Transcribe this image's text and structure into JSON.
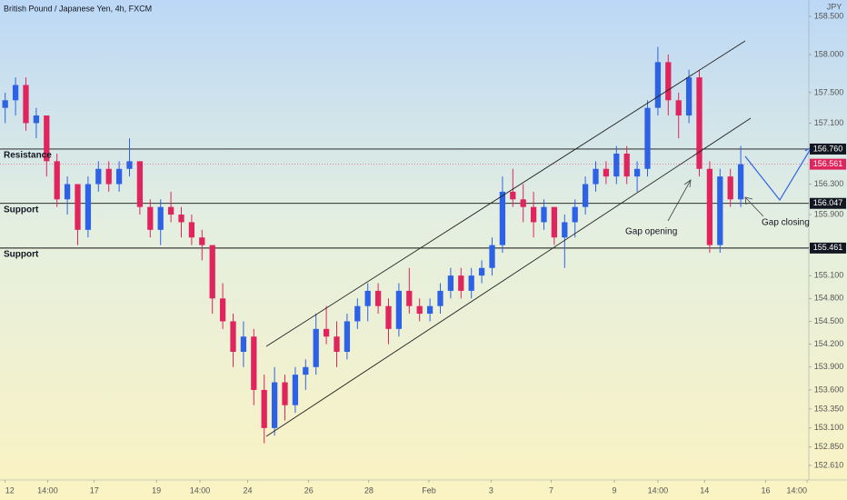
{
  "chart_data": {
    "type": "candlestick",
    "title": "British Pound / Japanese Yen, 4h, FXCM",
    "currency": "JPY",
    "up_color": "#2e62e6",
    "down_color": "#e0245e",
    "open": [
      157.3,
      157.4,
      157.6,
      157.1,
      157.2,
      156.6,
      156.1,
      156.3,
      155.7,
      156.3,
      156.5,
      156.3,
      156.5,
      156.6,
      156.0,
      155.7,
      156.0,
      155.9,
      155.8,
      155.6,
      155.5,
      154.8,
      154.5,
      154.1,
      154.3,
      153.6,
      153.1,
      153.7,
      153.4,
      153.8,
      153.9,
      154.4,
      154.3,
      154.1,
      154.5,
      154.7,
      154.9,
      154.7,
      154.4,
      154.9,
      154.7,
      154.6,
      154.7,
      154.9,
      155.1,
      154.9,
      155.1,
      155.2,
      155.5,
      156.2,
      156.1,
      156.0,
      155.8,
      156.0,
      155.6,
      155.8,
      156.0,
      156.3,
      156.5,
      156.4,
      156.7,
      156.4,
      156.5,
      157.3,
      157.9,
      157.4,
      157.2,
      157.7,
      156.5,
      155.5,
      156.4,
      156.1
    ],
    "high": [
      157.5,
      157.7,
      157.7,
      157.3,
      157.2,
      156.7,
      156.4,
      156.3,
      156.4,
      156.6,
      156.6,
      156.6,
      156.9,
      156.6,
      156.1,
      156.1,
      156.2,
      156.0,
      155.9,
      155.7,
      155.5,
      155.0,
      154.6,
      154.5,
      154.4,
      153.8,
      153.9,
      153.8,
      153.9,
      154.0,
      154.6,
      154.7,
      154.5,
      154.6,
      154.8,
      155.0,
      155.0,
      154.8,
      155.0,
      155.2,
      154.8,
      154.8,
      155.0,
      155.2,
      155.2,
      155.2,
      155.3,
      155.6,
      156.4,
      156.5,
      156.3,
      156.2,
      156.1,
      156.0,
      155.9,
      156.1,
      156.4,
      156.6,
      156.6,
      156.8,
      156.8,
      156.6,
      157.4,
      158.1,
      158.0,
      157.5,
      157.8,
      157.8,
      156.6,
      156.5,
      156.5,
      156.8
    ],
    "low": [
      157.1,
      157.2,
      157.0,
      156.9,
      156.4,
      156.0,
      155.9,
      155.5,
      155.6,
      156.2,
      156.2,
      156.2,
      156.4,
      155.9,
      155.6,
      155.5,
      155.8,
      155.6,
      155.5,
      155.3,
      154.6,
      154.4,
      153.9,
      153.9,
      153.4,
      152.9,
      153.0,
      153.2,
      153.3,
      153.6,
      153.8,
      154.2,
      153.9,
      154.0,
      154.4,
      154.5,
      154.6,
      154.2,
      154.3,
      154.6,
      154.5,
      154.5,
      154.6,
      154.8,
      154.8,
      154.8,
      155.0,
      155.1,
      155.4,
      156.0,
      155.8,
      155.6,
      155.7,
      155.5,
      155.2,
      155.6,
      155.9,
      156.2,
      156.3,
      156.3,
      156.3,
      156.2,
      156.4,
      157.2,
      157.2,
      156.9,
      157.1,
      156.4,
      155.4,
      155.4,
      156.0,
      156.0
    ],
    "close": [
      157.4,
      157.6,
      157.1,
      157.2,
      156.6,
      156.1,
      156.3,
      155.7,
      156.3,
      156.5,
      156.3,
      156.5,
      156.6,
      156.0,
      155.7,
      156.0,
      155.9,
      155.8,
      155.6,
      155.5,
      154.8,
      154.5,
      154.1,
      154.3,
      153.6,
      153.1,
      153.7,
      153.4,
      153.8,
      153.9,
      154.4,
      154.3,
      154.1,
      154.5,
      154.7,
      154.9,
      154.7,
      154.4,
      154.9,
      154.7,
      154.6,
      154.7,
      154.9,
      155.1,
      154.9,
      155.1,
      155.2,
      155.5,
      156.2,
      156.1,
      156.0,
      155.8,
      156.0,
      155.6,
      155.8,
      156.0,
      156.3,
      156.5,
      156.4,
      156.7,
      156.4,
      156.5,
      157.3,
      157.9,
      157.4,
      157.2,
      157.7,
      156.5,
      155.5,
      156.4,
      156.1,
      156.561
    ],
    "xlim": [
      -0.5,
      77.57
    ],
    "xticks": [
      {
        "value": 0,
        "label": "12"
      },
      {
        "value": 4.1,
        "label": "14:00"
      },
      {
        "value": 8.6,
        "label": "17"
      },
      {
        "value": 14.6,
        "label": "19"
      },
      {
        "value": 18.8,
        "label": "14:00"
      },
      {
        "value": 23.4,
        "label": "24"
      },
      {
        "value": 29.3,
        "label": "26"
      },
      {
        "value": 35.1,
        "label": "28"
      },
      {
        "value": 40.9,
        "label": "Feb"
      },
      {
        "value": 46.9,
        "label": "3"
      },
      {
        "value": 52.7,
        "label": "7"
      },
      {
        "value": 58.8,
        "label": "9"
      },
      {
        "value": 63.0,
        "label": "14:00"
      },
      {
        "value": 67.5,
        "label": "14"
      },
      {
        "value": 73.4,
        "label": "16"
      },
      {
        "value": 77.4,
        "label": "14:00"
      }
    ],
    "ylim": [
      152.49,
      158.715
    ],
    "yticks": [
      {
        "value": 158.5,
        "label": "158.500"
      },
      {
        "value": 158,
        "label": "158.000"
      },
      {
        "value": 157.5,
        "label": "157.500"
      },
      {
        "value": 157.1,
        "label": "157.100"
      },
      {
        "value": 156.3,
        "label": "156.300"
      },
      {
        "value": 155.9,
        "label": "155.900"
      },
      {
        "value": 155.1,
        "label": "155.100"
      },
      {
        "value": 154.8,
        "label": "154.800"
      },
      {
        "value": 154.5,
        "label": "154.500"
      },
      {
        "value": 154.2,
        "label": "154.200"
      },
      {
        "value": 153.9,
        "label": "153.900"
      },
      {
        "value": 153.6,
        "label": "153.600"
      },
      {
        "value": 153.35,
        "label": "153.350"
      },
      {
        "value": 153.1,
        "label": "153.100"
      },
      {
        "value": 152.85,
        "label": "152.850"
      },
      {
        "value": 152.61,
        "label": "152.610"
      }
    ],
    "levels": [
      {
        "value": 156.76,
        "label": "156.760",
        "name": "Resistance"
      },
      {
        "value": 156.047,
        "label": "156.047",
        "name": "Support"
      },
      {
        "value": 155.461,
        "label": "155.461",
        "name": "Support"
      }
    ],
    "last_price": {
      "value": 156.561,
      "label": "156.561"
    },
    "annotations": [
      "Gap opening",
      "Gap closing"
    ]
  }
}
